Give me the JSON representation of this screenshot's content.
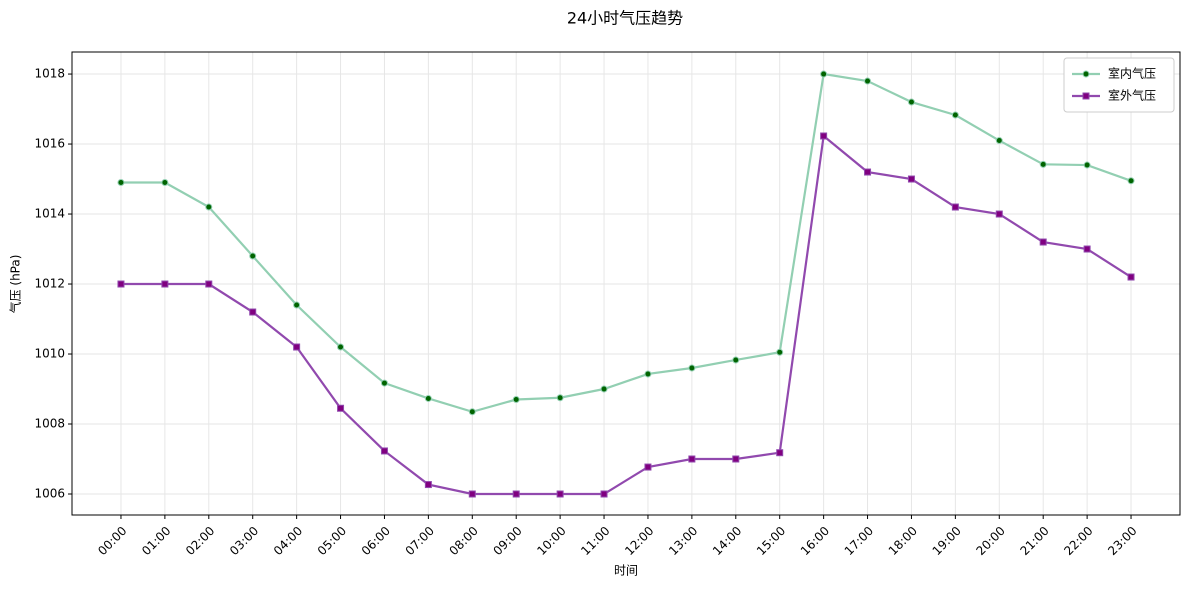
{
  "chart_data": {
    "type": "line",
    "title": "24小时气压趋势",
    "x_label": "时间",
    "y_label": "气压 (hPa)",
    "categories": [
      "00:00",
      "01:00",
      "02:00",
      "03:00",
      "04:00",
      "05:00",
      "06:00",
      "07:00",
      "08:00",
      "09:00",
      "10:00",
      "11:00",
      "12:00",
      "13:00",
      "14:00",
      "15:00",
      "16:00",
      "17:00",
      "18:00",
      "19:00",
      "20:00",
      "21:00",
      "22:00",
      "23:00"
    ],
    "series": [
      {
        "name": "室内气压",
        "color": "#92cfb2",
        "marker_color": "#006400",
        "marker": "circle",
        "values": [
          1014.9,
          1014.9,
          1014.2,
          1012.8,
          1011.4,
          1010.2,
          1009.17,
          1008.73,
          1008.35,
          1008.7,
          1008.75,
          1009.0,
          1009.43,
          1009.6,
          1009.83,
          1010.05,
          1018.0,
          1017.8,
          1017.2,
          1016.83,
          1016.1,
          1015.42,
          1015.4,
          1014.95
        ]
      },
      {
        "name": "室外气压",
        "color": "#9149ae",
        "marker_color": "#800080",
        "marker": "square",
        "values": [
          1012.0,
          1012.0,
          1012.0,
          1011.2,
          1010.2,
          1008.45,
          1007.23,
          1006.27,
          1006.0,
          1006.0,
          1006.0,
          1006.0,
          1006.77,
          1007.0,
          1007.0,
          1007.18,
          1016.23,
          1015.2,
          1015.0,
          1014.2,
          1014.0,
          1013.2,
          1013.0,
          1012.2
        ]
      }
    ],
    "ylim": [
      1005.4,
      1018.63
    ],
    "yticks": [
      1006,
      1008,
      1010,
      1012,
      1014,
      1016,
      1018
    ],
    "grid": true,
    "legend": "upper right"
  }
}
